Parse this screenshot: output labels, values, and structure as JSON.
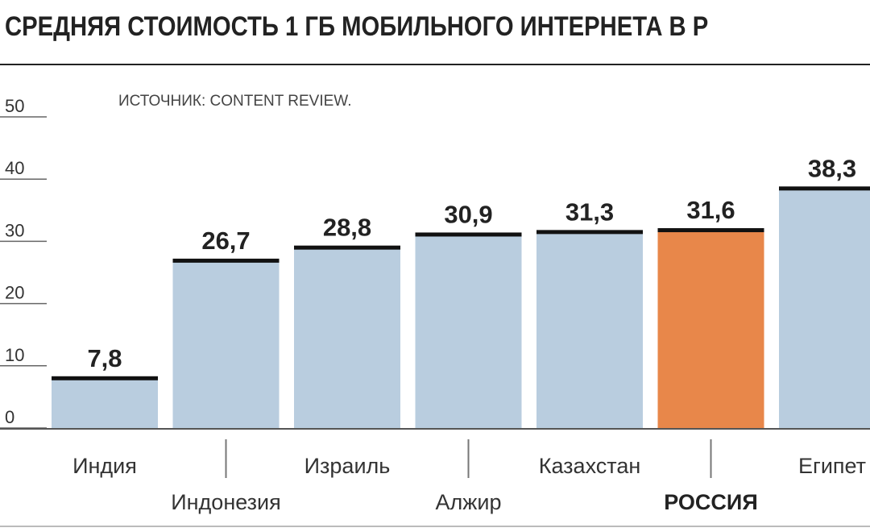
{
  "title": "СРЕДНЯЯ СТОИМОСТЬ 1 ГБ МОБИЛЬНОГО ИНТЕРНЕТА В Р",
  "source": "ИСТОЧНИК: CONTENT REVIEW.",
  "colors": {
    "bar": "#b9cddf",
    "highlight": "#e8874a",
    "cap": "#111111",
    "grid": "#666666"
  },
  "chart_data": {
    "type": "bar",
    "title": "СРЕДНЯЯ СТОИМОСТЬ 1 ГБ МОБИЛЬНОГО ИНТЕРНЕТА В Р",
    "xlabel": "",
    "ylabel": "",
    "ylim": [
      0,
      50
    ],
    "yticks": [
      0,
      10,
      20,
      30,
      40,
      50
    ],
    "categories": [
      "Индия",
      "Индонезия",
      "Израиль",
      "Алжир",
      "Казахстан",
      "РОССИЯ",
      "Египет"
    ],
    "values": [
      7.8,
      26.7,
      28.8,
      30.9,
      31.3,
      31.6,
      38.3
    ],
    "value_labels": [
      "7,8",
      "26,7",
      "28,8",
      "30,9",
      "31,3",
      "31,6",
      "38,3"
    ],
    "highlight_category": "РОССИЯ",
    "grid": true
  }
}
